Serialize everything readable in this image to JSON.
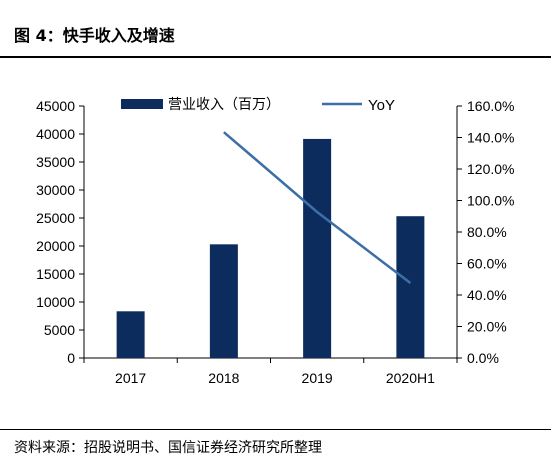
{
  "figure": {
    "title": "图 4：快手收入及增速",
    "source": "资料来源：招股说明书、国信证券经济研究所整理"
  },
  "chart_data": {
    "type": "bar",
    "categories": [
      "2017",
      "2018",
      "2019",
      "2020H1"
    ],
    "series": [
      {
        "name": "营业收入（百万）",
        "type": "bar",
        "axis": "left",
        "values": [
          8340,
          20300,
          39120,
          25320
        ]
      },
      {
        "name": "YoY",
        "type": "line",
        "axis": "right",
        "values": [
          null,
          143.4,
          92.7,
          47.6
        ]
      }
    ],
    "ylim_left": [
      0,
      45000
    ],
    "yticks_left": [
      "0",
      "5000",
      "10000",
      "15000",
      "20000",
      "25000",
      "30000",
      "35000",
      "40000",
      "45000"
    ],
    "ylim_right": [
      0,
      160
    ],
    "yticks_right": [
      "0.0%",
      "20.0%",
      "40.0%",
      "60.0%",
      "80.0%",
      "100.0%",
      "120.0%",
      "140.0%",
      "160.0%"
    ],
    "legend_position": "top",
    "colors": {
      "bar": "#0d2c5e",
      "line": "#3d6ea6"
    }
  }
}
